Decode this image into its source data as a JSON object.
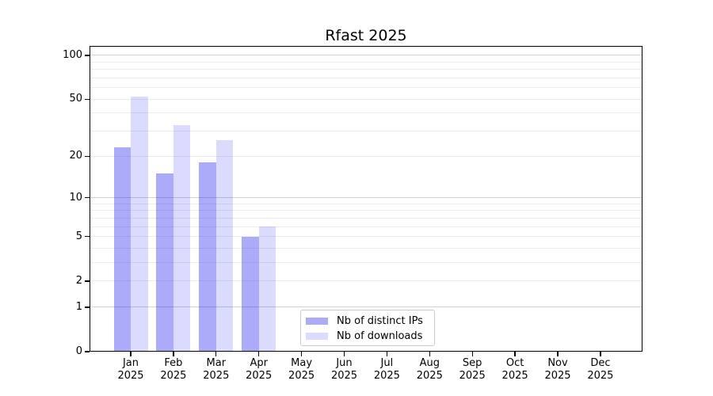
{
  "figure": {
    "background": "#ffffff"
  },
  "chart_data": {
    "type": "bar",
    "title": "Rfast 2025",
    "x_categories": [
      "Jan",
      "Feb",
      "Mar",
      "Apr",
      "May",
      "Jun",
      "Jul",
      "Aug",
      "Sep",
      "Oct",
      "Nov",
      "Dec"
    ],
    "x_year": "2025",
    "series": [
      {
        "name": "Nb of distinct IPs",
        "color": "rgba(0,0,240,0.33)",
        "values": [
          23,
          15,
          18,
          5,
          0,
          0,
          0,
          0,
          0,
          0,
          0,
          0
        ]
      },
      {
        "name": "Nb of downloads",
        "color": "rgba(0,0,240,0.14)",
        "values": [
          52,
          33,
          26,
          6,
          0,
          0,
          0,
          0,
          0,
          0,
          0,
          0
        ]
      }
    ],
    "y_axis": {
      "scale": "log10(1+x)",
      "ticks": [
        0,
        1,
        2,
        5,
        10,
        20,
        50,
        100
      ],
      "top_value": 116,
      "major_gridlines": [
        1,
        10,
        100
      ],
      "minor_gridlines": [
        2,
        3,
        4,
        5,
        6,
        7,
        8,
        9,
        20,
        30,
        40,
        50,
        60,
        70,
        80,
        90
      ]
    },
    "legend": {
      "location": "lower center"
    },
    "grid": true
  },
  "colors": {
    "grid_minor": "#ececec",
    "grid_major": "#d2d2d2",
    "axis": "#000000",
    "legend_border": "#c9c9c9"
  }
}
